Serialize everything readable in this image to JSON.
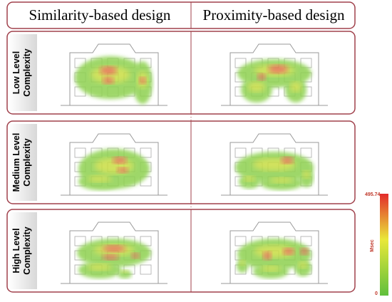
{
  "header": {
    "columns": [
      "Similarity-based design",
      "Proximity-based design"
    ]
  },
  "rows": [
    {
      "label": [
        "Low Level",
        "Complexity"
      ]
    },
    {
      "label": [
        "Medium Level",
        "Complexity"
      ]
    },
    {
      "label": [
        "High Level",
        "Complexity"
      ]
    }
  ],
  "colorbar": {
    "max": 495.74,
    "unit": "Msec",
    "min": 0
  }
}
